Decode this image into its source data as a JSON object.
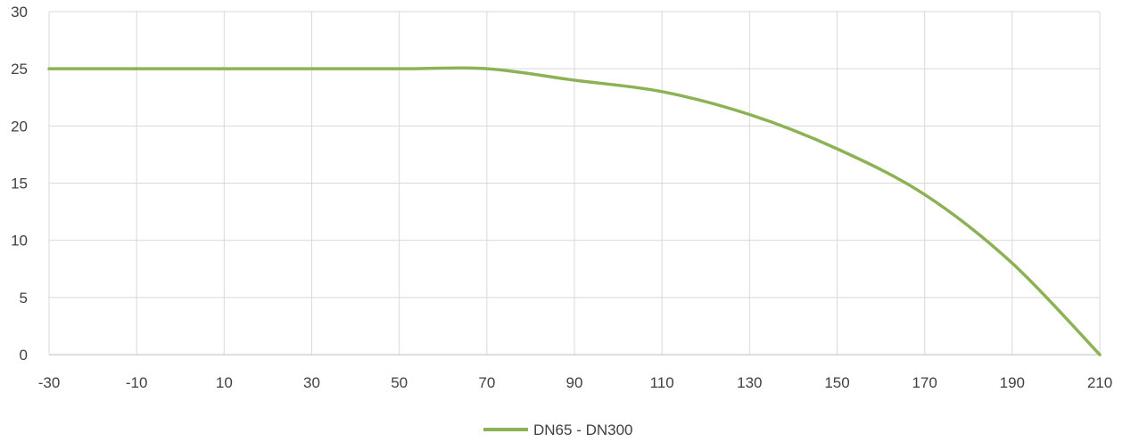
{
  "chart_data": {
    "type": "line",
    "title": "",
    "xlabel": "",
    "ylabel": "",
    "xlim": [
      -30,
      210
    ],
    "ylim": [
      0,
      30
    ],
    "x_ticks": [
      -30,
      -10,
      10,
      30,
      50,
      70,
      90,
      110,
      130,
      150,
      170,
      190,
      210
    ],
    "y_ticks": [
      0,
      5,
      10,
      15,
      20,
      25,
      30
    ],
    "x_tick_labels": [
      "-30",
      "-10",
      "10",
      "30",
      "50",
      "70",
      "90",
      "110",
      "130",
      "150",
      "170",
      "190",
      "210"
    ],
    "y_tick_labels": [
      "0",
      "5",
      "10",
      "15",
      "20",
      "25",
      "30"
    ],
    "grid": true,
    "legend_position": "bottom",
    "series": [
      {
        "name": "DN65 - DN300",
        "color": "#8db255",
        "x": [
          -30,
          -10,
          10,
          30,
          50,
          70,
          90,
          110,
          130,
          150,
          170,
          190,
          210
        ],
        "y": [
          25,
          25,
          25,
          25,
          25,
          25,
          24,
          23,
          21,
          18,
          14,
          8,
          0
        ]
      }
    ]
  }
}
